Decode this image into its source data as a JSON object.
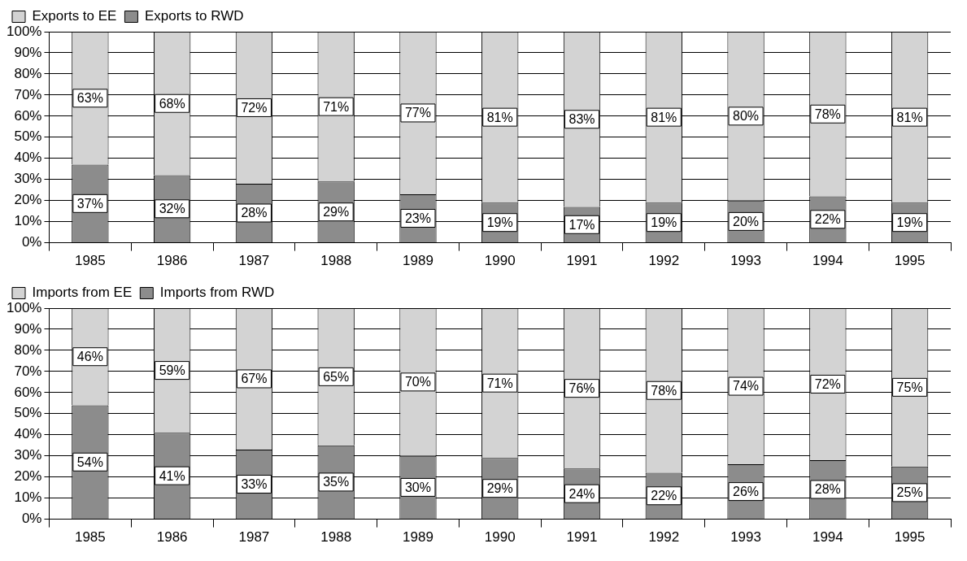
{
  "chart_data": [
    {
      "type": "bar",
      "stacked": true,
      "categories": [
        "1985",
        "1986",
        "1987",
        "1988",
        "1989",
        "1990",
        "1991",
        "1992",
        "1993",
        "1994",
        "1995"
      ],
      "series": [
        {
          "name": "Exports to RWD",
          "color": "#8c8c8c",
          "values": [
            37,
            32,
            28,
            29,
            23,
            19,
            17,
            19,
            20,
            22,
            19
          ],
          "value_labels": [
            "37%",
            "32%",
            "28%",
            "29%",
            "23%",
            "19%",
            "17%",
            "19%",
            "20%",
            "22%",
            "19%"
          ]
        },
        {
          "name": "Exports to EE",
          "color": "#d3d3d3",
          "values": [
            63,
            68,
            72,
            71,
            77,
            81,
            83,
            81,
            80,
            78,
            81
          ],
          "value_labels": [
            "63%",
            "68%",
            "72%",
            "71%",
            "77%",
            "81%",
            "83%",
            "81%",
            "80%",
            "78%",
            "81%"
          ]
        }
      ],
      "ylim": [
        0,
        100
      ],
      "yticks": [
        {
          "value": 0,
          "label": "0%"
        },
        {
          "value": 10,
          "label": "10%"
        },
        {
          "value": 20,
          "label": "20%"
        },
        {
          "value": 30,
          "label": "30%"
        },
        {
          "value": 40,
          "label": "40%"
        },
        {
          "value": 50,
          "label": "50%"
        },
        {
          "value": 60,
          "label": "60%"
        },
        {
          "value": 70,
          "label": "70%"
        },
        {
          "value": 80,
          "label": "80%"
        },
        {
          "value": 90,
          "label": "90%"
        },
        {
          "value": 100,
          "label": "100%"
        }
      ],
      "grid": "y",
      "legend": "top left"
    },
    {
      "type": "bar",
      "stacked": true,
      "categories": [
        "1985",
        "1986",
        "1987",
        "1988",
        "1989",
        "1990",
        "1991",
        "1992",
        "1993",
        "1994",
        "1995"
      ],
      "series": [
        {
          "name": "Imports from RWD",
          "color": "#8c8c8c",
          "values": [
            54,
            41,
            33,
            35,
            30,
            29,
            24,
            22,
            26,
            28,
            25
          ],
          "value_labels": [
            "54%",
            "41%",
            "33%",
            "35%",
            "30%",
            "29%",
            "24%",
            "22%",
            "26%",
            "28%",
            "25%"
          ]
        },
        {
          "name": "Imports from EE",
          "color": "#d3d3d3",
          "values": [
            46,
            59,
            67,
            65,
            70,
            71,
            76,
            78,
            74,
            72,
            75
          ],
          "value_labels": [
            "46%",
            "59%",
            "67%",
            "65%",
            "70%",
            "71%",
            "76%",
            "78%",
            "74%",
            "72%",
            "75%"
          ]
        }
      ],
      "ylim": [
        0,
        100
      ],
      "yticks": [
        {
          "value": 0,
          "label": "0%"
        },
        {
          "value": 10,
          "label": "10%"
        },
        {
          "value": 20,
          "label": "20%"
        },
        {
          "value": 30,
          "label": "30%"
        },
        {
          "value": 40,
          "label": "40%"
        },
        {
          "value": 50,
          "label": "50%"
        },
        {
          "value": 60,
          "label": "60%"
        },
        {
          "value": 70,
          "label": "70%"
        },
        {
          "value": 80,
          "label": "80%"
        },
        {
          "value": 90,
          "label": "90%"
        },
        {
          "value": 100,
          "label": "100%"
        }
      ],
      "grid": "y",
      "legend": "top left"
    }
  ]
}
